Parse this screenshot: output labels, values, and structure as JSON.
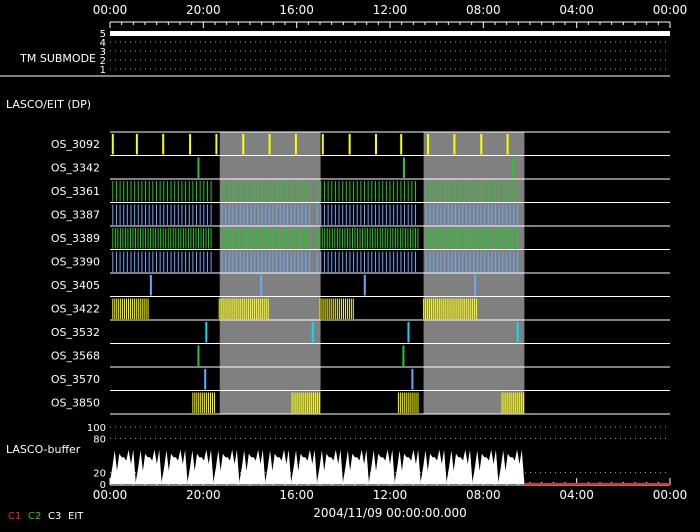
{
  "chart_data": {
    "type": "timeline",
    "time_axis": {
      "tick_labels": [
        "00:00",
        "20:00",
        "16:00",
        "12:00",
        "08:00",
        "04:00",
        "00:00"
      ],
      "epoch_label": "2004/11/09 00:00:00.000"
    },
    "submode": {
      "label": "TM SUBMODE",
      "tick_labels": [
        "5",
        "4",
        "3",
        "2",
        "1"
      ],
      "value": 5
    },
    "section_label": "LASCO/EIT (DP)",
    "shaded_intervals": [
      [
        0.196,
        0.376
      ],
      [
        0.56,
        0.74
      ]
    ],
    "rows": [
      {
        "label": "OS_3092",
        "color": "#ffff00",
        "pattern": "events",
        "times": [
          0.005,
          0.048,
          0.095,
          0.143,
          0.19,
          0.238,
          0.285,
          0.332,
          0.38,
          0.428,
          0.475,
          0.52,
          0.568,
          0.615,
          0.663,
          0.71
        ]
      },
      {
        "label": "OS_3342",
        "color": "#22cc22",
        "pattern": "events",
        "times": [
          0.158,
          0.525,
          0.72
        ]
      },
      {
        "label": "OS_3361",
        "color": "#22cc22",
        "pattern": "dense",
        "segments": [
          [
            0.005,
            0.185
          ],
          [
            0.2,
            0.362
          ],
          [
            0.37,
            0.55
          ],
          [
            0.565,
            0.728
          ]
        ],
        "spacing": 0.0065
      },
      {
        "label": "OS_3387",
        "color": "#66aaff",
        "pattern": "dense",
        "segments": [
          [
            0.005,
            0.185
          ],
          [
            0.2,
            0.362
          ],
          [
            0.37,
            0.55
          ],
          [
            0.565,
            0.728
          ]
        ],
        "spacing": 0.0065
      },
      {
        "label": "OS_3389",
        "color": "#22cc22",
        "pattern": "dense",
        "segments": [
          [
            0.005,
            0.185
          ],
          [
            0.2,
            0.362
          ],
          [
            0.37,
            0.55
          ],
          [
            0.565,
            0.728
          ]
        ],
        "spacing": 0.0045
      },
      {
        "label": "OS_3390",
        "color": "#66aaff",
        "pattern": "dense",
        "segments": [
          [
            0.005,
            0.185
          ],
          [
            0.2,
            0.362
          ],
          [
            0.37,
            0.55
          ],
          [
            0.565,
            0.728
          ]
        ],
        "spacing": 0.0065
      },
      {
        "label": "OS_3405",
        "color": "#66aaff",
        "pattern": "events",
        "times": [
          0.073,
          0.27,
          0.455,
          0.652
        ]
      },
      {
        "label": "OS_3422",
        "color": "#ffff00",
        "pattern": "dense",
        "segments": [
          [
            0.005,
            0.07
          ],
          [
            0.195,
            0.285
          ],
          [
            0.375,
            0.435
          ],
          [
            0.56,
            0.655
          ]
        ],
        "spacing": 0.0035
      },
      {
        "label": "OS_3532",
        "color": "#00ddff",
        "pattern": "events",
        "times": [
          0.172,
          0.362,
          0.533,
          0.728
        ]
      },
      {
        "label": "OS_3568",
        "color": "#22cc22",
        "pattern": "events",
        "times": [
          0.158,
          0.524
        ]
      },
      {
        "label": "OS_3570",
        "color": "#66aaff",
        "pattern": "events",
        "times": [
          0.17,
          0.54
        ]
      },
      {
        "label": "OS_3850",
        "color": "#ffff00",
        "pattern": "dense",
        "segments": [
          [
            0.148,
            0.187
          ],
          [
            0.325,
            0.376
          ],
          [
            0.515,
            0.553
          ],
          [
            0.7,
            0.74
          ]
        ],
        "spacing": 0.0035
      }
    ],
    "buffer": {
      "label": "LASCO-buffer",
      "tick_labels": [
        "100",
        "80",
        "20",
        "0"
      ],
      "tick_values": [
        100,
        80,
        20,
        0
      ],
      "ylim": [
        0,
        100
      ],
      "cycle_count": 16,
      "active_until": 0.74
    },
    "legend": [
      {
        "label": "C1",
        "color": "#ff2222"
      },
      {
        "label": "C2",
        "color": "#22cc22"
      },
      {
        "label": "C3",
        "color": "#ffffff"
      },
      {
        "label": "EIT",
        "color": "#ffffff"
      }
    ]
  }
}
